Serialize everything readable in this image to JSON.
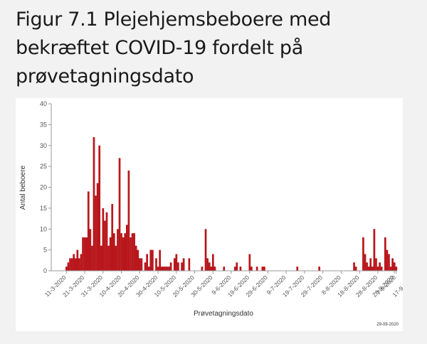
{
  "figure": {
    "title": "Figur 7.1 Plejehjemsbeboere med bekræftet COVID-19 fordelt på prøvetagningsdato"
  },
  "colors": {
    "bar": "#b8171c",
    "axis": "#999999",
    "text": "#555555"
  },
  "chart_data": {
    "type": "bar",
    "title": "",
    "xlabel": "Prøvetagningsdato",
    "ylabel": "Antal beboere",
    "ylim": [
      0,
      40
    ],
    "yticks": [
      0,
      5,
      10,
      15,
      20,
      25,
      30,
      35,
      40
    ],
    "grid": false,
    "stamp": "29-09-2020",
    "x_tick_labels": [
      "11-3-2020",
      "21-3-2020",
      "31-3-2020",
      "10-4-2020",
      "20-4-2020",
      "30-4-2020",
      "10-5-2020",
      "20-5-2020",
      "30-5-2020",
      "9-6-2020",
      "19-6-2020",
      "29-6-2020",
      "9-7-2020",
      "19-7-2020",
      "29-7-2020",
      "8-8-2020",
      "18-8-2020",
      "28-8-2020",
      "7-9-2020",
      "17-9-2020",
      "28-9-2020"
    ],
    "start_date": "2020-03-11",
    "values": [
      1,
      2,
      3,
      3,
      4,
      3,
      5,
      3,
      4,
      8,
      8,
      8,
      19,
      10,
      6,
      32,
      18,
      21,
      30,
      6,
      15,
      12,
      14,
      6,
      8,
      16,
      9,
      6,
      10,
      27,
      9,
      8,
      9,
      11,
      24,
      8,
      9,
      9,
      6,
      5,
      3,
      3,
      0,
      2,
      4,
      1,
      5,
      5,
      0,
      3,
      1,
      5,
      1,
      1,
      1,
      1,
      1,
      2,
      0,
      3,
      4,
      2,
      0,
      2,
      3,
      0,
      0,
      3,
      0,
      0,
      0,
      0,
      0,
      0,
      1,
      0,
      10,
      3,
      2,
      1,
      4,
      1,
      0,
      0,
      0,
      0,
      1,
      0,
      0,
      0,
      0,
      0,
      1,
      2,
      0,
      1,
      0,
      0,
      0,
      0,
      4,
      1,
      0,
      0,
      1,
      0,
      0,
      1,
      1,
      0,
      0,
      0,
      0,
      0,
      0,
      0,
      0,
      0,
      0,
      0,
      0,
      0,
      0,
      0,
      0,
      0,
      1,
      0,
      0,
      0,
      0,
      0,
      0,
      0,
      0,
      0,
      0,
      0,
      1,
      0,
      0,
      0,
      0,
      0,
      0,
      0,
      0,
      0,
      0,
      0,
      0,
      0,
      0,
      0,
      0,
      0,
      0,
      2,
      1,
      0,
      0,
      0,
      8,
      4,
      2,
      1,
      3,
      1,
      10,
      3,
      1,
      2,
      1,
      0,
      8,
      5,
      4,
      1,
      3,
      2,
      1
    ]
  }
}
